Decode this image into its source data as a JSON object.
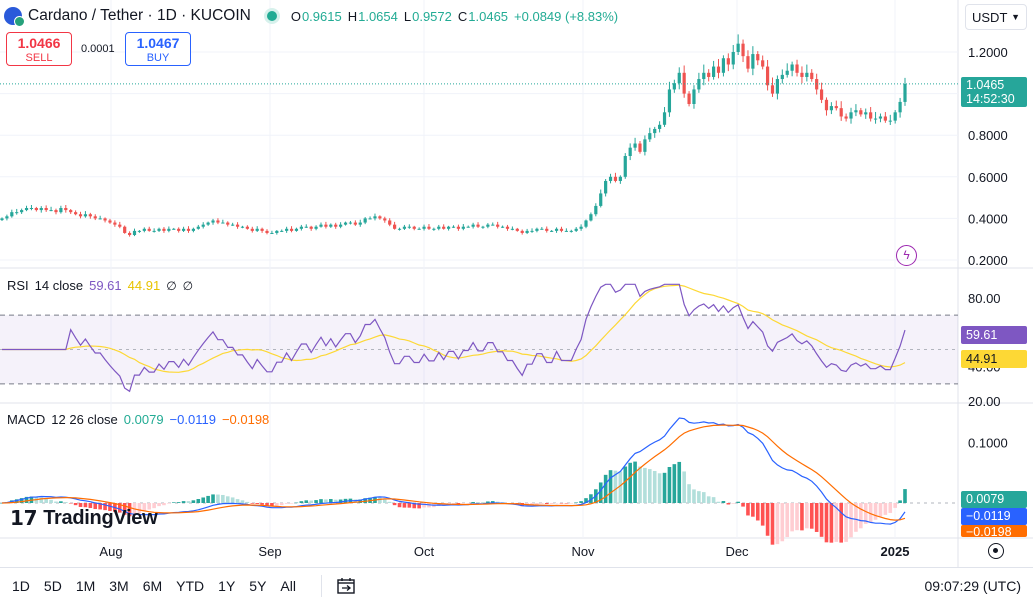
{
  "header": {
    "title": "Cardano / Tether · 1D · KUCOIN",
    "ohlc": {
      "o_label": "O",
      "o": "0.9615",
      "h_label": "H",
      "h": "1.0654",
      "l_label": "L",
      "l": "0.9572",
      "c_label": "C",
      "c": "1.0465",
      "change": "+0.0849 (+8.83%)"
    }
  },
  "trade": {
    "sell_price": "1.0466",
    "sell_label": "SELL",
    "spread": "0.0001",
    "buy_price": "1.0467",
    "buy_label": "BUY"
  },
  "currency": "USDT",
  "price_axis": {
    "ticks": [
      "1.2000",
      "0.8000",
      "0.6000",
      "0.4000",
      "0.2000"
    ],
    "last_price": "1.0465",
    "countdown": "14:52:30"
  },
  "rsi": {
    "name": "RSI",
    "params": "14 close",
    "value": "59.61",
    "ma_value": "44.91",
    "ticks": [
      "80.00",
      "40.00",
      "20.00"
    ]
  },
  "macd": {
    "name": "MACD",
    "params": "12 26 close",
    "hist": "0.0079",
    "macd": "−0.0119",
    "signal": "−0.0198",
    "ticks": [
      "0.1000"
    ]
  },
  "time_axis": {
    "labels": [
      "Aug",
      "Sep",
      "Oct",
      "Nov",
      "Dec",
      "2025"
    ]
  },
  "bottom": {
    "ranges": [
      "1D",
      "5D",
      "1M",
      "3M",
      "6M",
      "YTD",
      "1Y",
      "5Y",
      "All"
    ],
    "clock": "09:07:29 (UTC)"
  },
  "logo": "TradingView",
  "colors": {
    "up": "#26a69a",
    "down": "#ef5350",
    "rsi": "#7e57c2",
    "rsi_ma": "#fdd835",
    "macd": "#2962ff",
    "signal": "#ff6d00",
    "text": "#131722",
    "grid": "#f0f3fa"
  },
  "chart_data": [
    {
      "type": "candlestick",
      "title": "Cardano / Tether · 1D · KUCOIN",
      "x_range": [
        "2024-07-01",
        "2025-01-01"
      ],
      "ylim": [
        0.2,
        1.3
      ],
      "close_series": [
        0.4,
        0.41,
        0.43,
        0.43,
        0.44,
        0.45,
        0.45,
        0.44,
        0.45,
        0.44,
        0.44,
        0.43,
        0.45,
        0.44,
        0.43,
        0.42,
        0.41,
        0.42,
        0.41,
        0.4,
        0.4,
        0.39,
        0.38,
        0.37,
        0.36,
        0.33,
        0.32,
        0.34,
        0.34,
        0.35,
        0.34,
        0.34,
        0.35,
        0.34,
        0.35,
        0.35,
        0.34,
        0.35,
        0.34,
        0.35,
        0.36,
        0.37,
        0.38,
        0.39,
        0.38,
        0.38,
        0.37,
        0.37,
        0.36,
        0.36,
        0.35,
        0.34,
        0.35,
        0.34,
        0.33,
        0.33,
        0.34,
        0.34,
        0.35,
        0.34,
        0.35,
        0.36,
        0.36,
        0.35,
        0.36,
        0.37,
        0.36,
        0.37,
        0.36,
        0.37,
        0.38,
        0.38,
        0.37,
        0.38,
        0.4,
        0.4,
        0.41,
        0.4,
        0.39,
        0.37,
        0.35,
        0.35,
        0.36,
        0.36,
        0.35,
        0.35,
        0.36,
        0.35,
        0.35,
        0.36,
        0.35,
        0.36,
        0.36,
        0.35,
        0.36,
        0.36,
        0.37,
        0.36,
        0.36,
        0.37,
        0.37,
        0.36,
        0.36,
        0.35,
        0.35,
        0.34,
        0.33,
        0.34,
        0.34,
        0.35,
        0.35,
        0.34,
        0.34,
        0.35,
        0.34,
        0.34,
        0.34,
        0.35,
        0.36,
        0.39,
        0.42,
        0.46,
        0.52,
        0.58,
        0.6,
        0.58,
        0.6,
        0.7,
        0.74,
        0.76,
        0.72,
        0.78,
        0.81,
        0.83,
        0.85,
        0.91,
        1.02,
        1.05,
        1.1,
        1.0,
        0.95,
        1.02,
        1.07,
        1.1,
        1.08,
        1.13,
        1.1,
        1.17,
        1.14,
        1.2,
        1.24,
        1.18,
        1.12,
        1.19,
        1.16,
        1.13,
        1.04,
        1.0,
        1.07,
        1.09,
        1.11,
        1.14,
        1.1,
        1.08,
        1.1,
        1.07,
        1.02,
        0.97,
        0.92,
        0.94,
        0.93,
        0.89,
        0.88,
        0.91,
        0.92,
        0.9,
        0.91,
        0.88,
        0.88,
        0.89,
        0.87,
        0.87,
        0.91,
        0.96,
        1.0465
      ]
    },
    {
      "type": "line",
      "title": "RSI 14 close",
      "ylim": [
        20,
        90
      ],
      "series": [
        {
          "name": "RSI",
          "last": 59.61
        },
        {
          "name": "RSI-based MA",
          "last": 44.91
        }
      ],
      "bands": [
        30,
        50,
        70
      ]
    },
    {
      "type": "bar",
      "title": "MACD 12 26 close",
      "series": [
        {
          "name": "Histogram",
          "last": 0.0079
        },
        {
          "name": "MACD",
          "last": -0.0119
        },
        {
          "name": "Signal",
          "last": -0.0198
        }
      ]
    }
  ]
}
